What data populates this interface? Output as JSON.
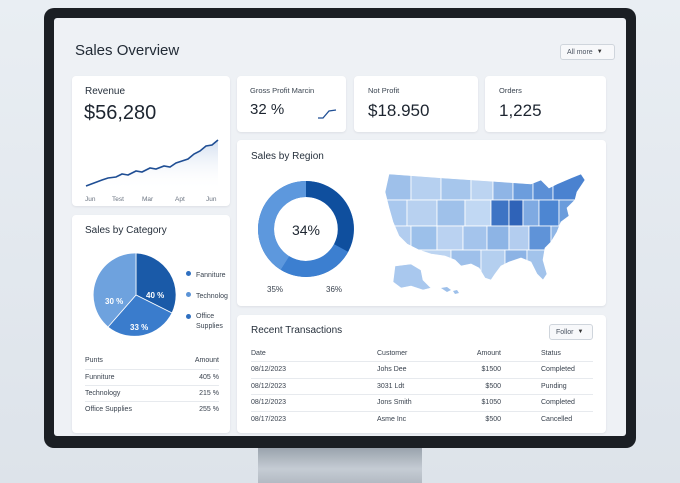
{
  "page": {
    "title": "Sales Overview",
    "filter": "All more"
  },
  "revenue": {
    "label": "Revenue",
    "value": "$56,280",
    "months": [
      "Jun",
      "Test",
      "Mar",
      "Apt",
      "Jun"
    ]
  },
  "gross_profit": {
    "label": "Gross Profit Marcin",
    "value": "32 %"
  },
  "net_profit": {
    "label": "Not Profit",
    "value": "$18.950"
  },
  "orders": {
    "label": "Orders",
    "value": "1,225"
  },
  "region": {
    "title": "Sales by Region",
    "donut_center": "34%",
    "label_left": "35%",
    "label_right": "36%"
  },
  "category": {
    "title": "Sales by Category",
    "pie_labels": [
      "40 %",
      "30 %",
      "33 %"
    ],
    "legend": [
      "Fanniture",
      "Technolog",
      "Office Supplies"
    ],
    "legend_colors": [
      "#2f6fc0",
      "#5b93d6",
      "#2f6fc0"
    ],
    "table_headers": [
      "Punts",
      "Amount"
    ],
    "rows": [
      {
        "name": "Funniture",
        "amount": "405 %"
      },
      {
        "name": "Technology",
        "amount": "215 %"
      },
      {
        "name": "Office Supplies",
        "amount": "255 %"
      }
    ]
  },
  "transactions": {
    "title": "Recent Transactions",
    "filter": "Follor",
    "headers": [
      "Date",
      "Customer",
      "Amount",
      "Status"
    ],
    "rows": [
      {
        "date": "08/12/2023",
        "customer": "Johs Dee",
        "amount": "$1500",
        "status": "Completed"
      },
      {
        "date": "08/12/2023",
        "customer": "3031 Ldt",
        "amount": "$500",
        "status": "Punding"
      },
      {
        "date": "08/12/2023",
        "customer": "Jons Smith",
        "amount": "$1050",
        "status": "Completed"
      },
      {
        "date": "08/17/2023",
        "customer": "Asme Inc",
        "amount": "$500",
        "status": "Cancelled"
      }
    ]
  },
  "colors": {
    "primary": "#1f5fad",
    "light": "#6aa0dd",
    "pale": "#a9c8ee"
  }
}
